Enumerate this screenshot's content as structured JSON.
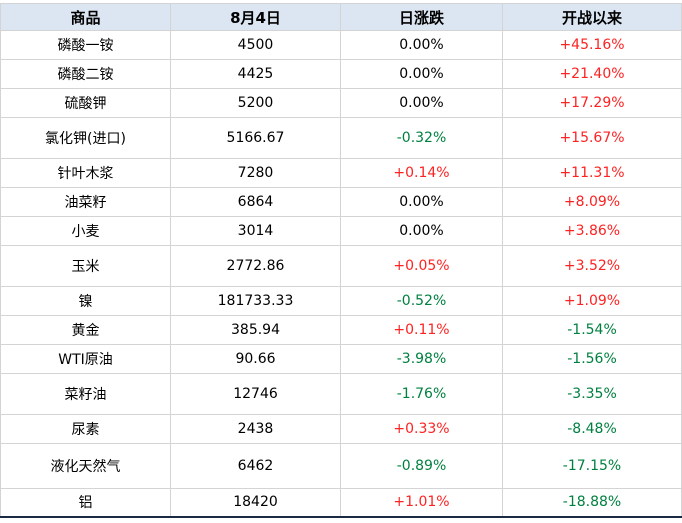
{
  "chart_data": {
    "type": "table",
    "columns": [
      "商品",
      "8月4日",
      "日涨跌",
      "开战以来"
    ],
    "rows": [
      {
        "name": "磷酸一铵",
        "price": "4500",
        "daily_change": "0.00%",
        "daily_dir": "flat",
        "since_start": "+45.16%",
        "since_dir": "up"
      },
      {
        "name": "磷酸二铵",
        "price": "4425",
        "daily_change": "0.00%",
        "daily_dir": "flat",
        "since_start": "+21.40%",
        "since_dir": "up"
      },
      {
        "name": "硫酸钾",
        "price": "5200",
        "daily_change": "0.00%",
        "daily_dir": "flat",
        "since_start": "+17.29%",
        "since_dir": "up"
      },
      {
        "name": "氯化钾(进口)",
        "price": "5166.67",
        "daily_change": "-0.32%",
        "daily_dir": "down",
        "since_start": "+15.67%",
        "since_dir": "up"
      },
      {
        "name": "针叶木浆",
        "price": "7280",
        "daily_change": "+0.14%",
        "daily_dir": "up",
        "since_start": "+11.31%",
        "since_dir": "up"
      },
      {
        "name": "油菜籽",
        "price": "6864",
        "daily_change": "0.00%",
        "daily_dir": "flat",
        "since_start": "+8.09%",
        "since_dir": "up"
      },
      {
        "name": "小麦",
        "price": "3014",
        "daily_change": "0.00%",
        "daily_dir": "flat",
        "since_start": "+3.86%",
        "since_dir": "up"
      },
      {
        "name": "玉米",
        "price": "2772.86",
        "daily_change": "+0.05%",
        "daily_dir": "up",
        "since_start": "+3.52%",
        "since_dir": "up"
      },
      {
        "name": "镍",
        "price": "181733.33",
        "daily_change": "-0.52%",
        "daily_dir": "down",
        "since_start": "+1.09%",
        "since_dir": "up"
      },
      {
        "name": "黄金",
        "price": "385.94",
        "daily_change": "+0.11%",
        "daily_dir": "up",
        "since_start": "-1.54%",
        "since_dir": "down"
      },
      {
        "name": "WTI原油",
        "price": "90.66",
        "daily_change": "-3.98%",
        "daily_dir": "down",
        "since_start": "-1.56%",
        "since_dir": "down"
      },
      {
        "name": "菜籽油",
        "price": "12746",
        "daily_change": "-1.76%",
        "daily_dir": "down",
        "since_start": "-3.35%",
        "since_dir": "down"
      },
      {
        "name": "尿素",
        "price": "2438",
        "daily_change": "+0.33%",
        "daily_dir": "up",
        "since_start": "-8.48%",
        "since_dir": "down"
      },
      {
        "name": "液化天然气",
        "price": "6462",
        "daily_change": "-0.89%",
        "daily_dir": "down",
        "since_start": "-17.15%",
        "since_dir": "down"
      },
      {
        "name": "铝",
        "price": "18420",
        "daily_change": "+1.01%",
        "daily_dir": "up",
        "since_start": "-18.88%",
        "since_dir": "down"
      }
    ]
  },
  "colors": {
    "up": "#fe2222",
    "down": "#008040",
    "flat": "#000000",
    "header_bg": "#dce6f2",
    "grid_border": "#d4d4d4",
    "bottom_border": "#1b2a44"
  }
}
